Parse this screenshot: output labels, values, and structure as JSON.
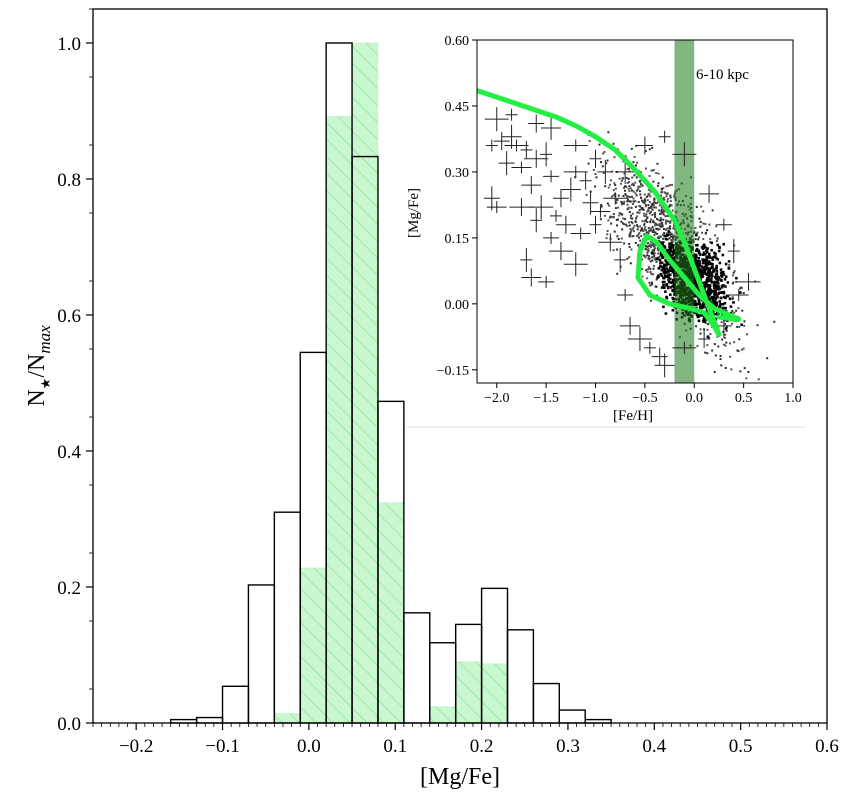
{
  "chart_data": [
    {
      "type": "bar",
      "xlabel": "[Mg/Fe]",
      "ylabel_main": "N",
      "ylabel_sub1": "★",
      "ylabel_mid": "/N",
      "ylabel_sub2": "max",
      "xlim": [
        -0.25,
        0.6
      ],
      "ylim": [
        0.0,
        1.05
      ],
      "xticks": [
        "-0.2",
        "-0.1",
        "0.0",
        "0.1",
        "0.2",
        "0.3",
        "0.4",
        "0.5",
        "0.6"
      ],
      "yticks": [
        "0.0",
        "0.2",
        "0.4",
        "0.6",
        "0.8",
        "1.0"
      ],
      "bin_edges": [
        -0.16,
        -0.13,
        -0.1,
        -0.07,
        -0.04,
        -0.01,
        0.02,
        0.05,
        0.08,
        0.11,
        0.14,
        0.17,
        0.2,
        0.23,
        0.26,
        0.29,
        0.32,
        0.35
      ],
      "series": [
        {
          "style": "open outline",
          "color": "#000000",
          "values": [
            0.005,
            0.008,
            0.054,
            0.203,
            0.31,
            0.545,
            1.0,
            0.833,
            0.473,
            0.162,
            0.118,
            0.145,
            0.198,
            0.137,
            0.058,
            0.019,
            0.005
          ]
        },
        {
          "style": "hatched fill",
          "color": "#c9f7cf",
          "hatch_color": "#86e39a",
          "values": [
            0.0,
            0.0,
            0.0,
            0.0,
            0.014,
            0.228,
            0.892,
            1.0,
            0.324,
            0.0,
            0.024,
            0.09,
            0.087,
            0.0,
            0.0,
            0.0,
            0.0
          ]
        }
      ]
    },
    {
      "type": "scatter",
      "xlabel": "[Fe/H]",
      "ylabel": "[Mg/Fe]",
      "xlim": [
        -2.2,
        1.0
      ],
      "ylim": [
        -0.18,
        0.6
      ],
      "xticks": [
        -2.0,
        -1.5,
        -1.0,
        -0.5,
        0.0,
        0.5,
        1.0
      ],
      "yticks": [
        -0.15,
        0.0,
        0.15,
        0.3,
        0.45,
        0.6
      ],
      "xtick_labels": [
        "−2.0",
        "−1.5",
        "−1.0",
        "−0.5",
        "0.0",
        "0.5",
        "1.0"
      ],
      "ytick_labels": [
        "−0.15",
        "0.00",
        "0.15",
        "0.30",
        "0.45",
        "0.60"
      ],
      "annotation": "6-10 kpc",
      "band": {
        "x": [
          -0.2,
          0.0
        ],
        "color": "#1a7a1a"
      },
      "model_track_color": "#22ee44",
      "model_track": [
        [
          -2.2,
          0.485
        ],
        [
          -2.0,
          0.47
        ],
        [
          -1.8,
          0.455
        ],
        [
          -1.6,
          0.44
        ],
        [
          -1.4,
          0.425
        ],
        [
          -1.2,
          0.405
        ],
        [
          -1.0,
          0.38
        ],
        [
          -0.8,
          0.35
        ],
        [
          -0.6,
          0.305
        ],
        [
          -0.4,
          0.255
        ],
        [
          -0.2,
          0.19
        ],
        [
          -0.1,
          0.14
        ],
        [
          0.0,
          0.08
        ],
        [
          0.1,
          0.02
        ],
        [
          0.2,
          -0.04
        ],
        [
          0.25,
          -0.07
        ],
        [
          0.2,
          -0.05
        ],
        [
          0.1,
          -0.02
        ],
        [
          -0.05,
          -0.01
        ],
        [
          -0.25,
          0.0
        ],
        [
          -0.45,
          0.02
        ],
        [
          -0.57,
          0.06
        ],
        [
          -0.55,
          0.12
        ],
        [
          -0.48,
          0.155
        ],
        [
          -0.38,
          0.14
        ],
        [
          -0.25,
          0.1
        ],
        [
          -0.1,
          0.06
        ],
        [
          0.05,
          0.02
        ],
        [
          0.2,
          -0.01
        ],
        [
          0.35,
          -0.025
        ],
        [
          0.45,
          -0.035
        ],
        [
          0.4,
          -0.035
        ],
        [
          0.25,
          -0.03
        ]
      ],
      "error_points": [
        [
          -2.05,
          0.36
        ],
        [
          -1.95,
          0.37
        ],
        [
          -1.85,
          0.38
        ],
        [
          -1.8,
          0.36
        ],
        [
          -1.7,
          0.35
        ],
        [
          -1.9,
          0.32
        ],
        [
          -1.75,
          0.31
        ],
        [
          -1.6,
          0.33
        ],
        [
          -1.5,
          0.34
        ],
        [
          -1.45,
          0.29
        ],
        [
          -1.65,
          0.27
        ],
        [
          -1.55,
          0.22
        ],
        [
          -1.4,
          0.2
        ],
        [
          -1.35,
          0.24
        ],
        [
          -1.25,
          0.26
        ],
        [
          -1.2,
          0.3
        ],
        [
          -1.1,
          0.28
        ],
        [
          -1.05,
          0.23
        ],
        [
          -1.15,
          0.16
        ],
        [
          -1.35,
          0.12
        ],
        [
          -1.7,
          0.1
        ],
        [
          -1.5,
          0.05
        ],
        [
          -1.3,
          0.18
        ],
        [
          -2.0,
          0.42
        ],
        [
          -1.85,
          0.43
        ],
        [
          -1.6,
          0.41
        ],
        [
          -1.45,
          0.4
        ],
        [
          -1.2,
          0.36
        ],
        [
          -1.0,
          0.33
        ],
        [
          -0.9,
          0.3
        ],
        [
          -0.95,
          0.21
        ],
        [
          -0.85,
          0.14
        ],
        [
          -0.75,
          0.1
        ],
        [
          -0.7,
          0.02
        ],
        [
          -0.65,
          -0.05
        ],
        [
          -0.55,
          -0.08
        ],
        [
          -0.45,
          -0.1
        ],
        [
          -0.35,
          -0.12
        ],
        [
          -0.3,
          -0.14
        ],
        [
          -0.1,
          -0.1
        ],
        [
          0.1,
          -0.08
        ],
        [
          0.3,
          -0.05
        ],
        [
          0.45,
          0.02
        ],
        [
          0.55,
          0.05
        ],
        [
          0.4,
          0.12
        ],
        [
          0.3,
          0.18
        ],
        [
          0.15,
          0.25
        ],
        [
          -0.1,
          0.34
        ],
        [
          -0.3,
          0.38
        ],
        [
          -0.5,
          0.36
        ],
        [
          -0.7,
          0.3
        ],
        [
          -0.8,
          0.24
        ],
        [
          -1.0,
          0.18
        ],
        [
          -2.05,
          0.24
        ],
        [
          -2.0,
          0.22
        ],
        [
          -1.75,
          0.22
        ],
        [
          -1.6,
          0.19
        ],
        [
          -1.45,
          0.15
        ],
        [
          -1.65,
          0.06
        ],
        [
          -1.2,
          0.09
        ]
      ],
      "cloud_center": [
        -0.2,
        0.12
      ]
    }
  ]
}
